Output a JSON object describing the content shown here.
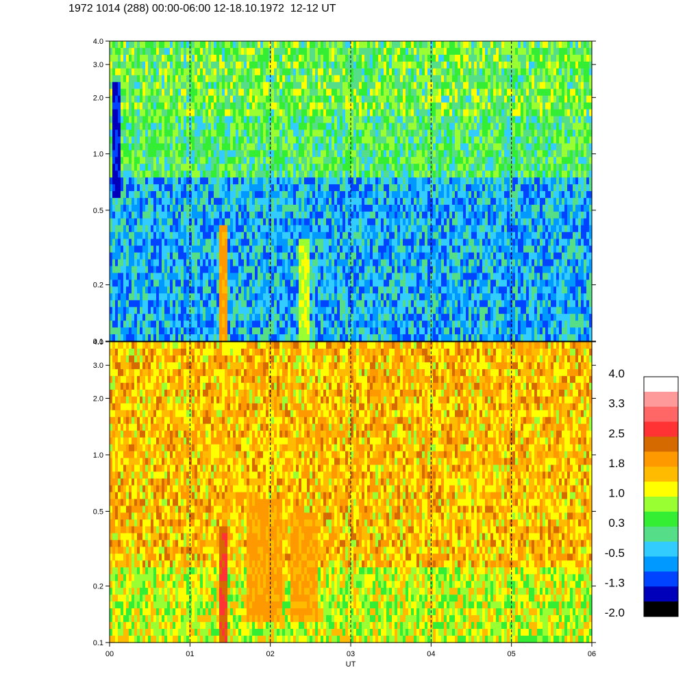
{
  "title": "1972 1014 (288) 00:00-06:00 12-18.10.1972  12-12 UT",
  "chart_data": {
    "type": "heatmap",
    "xlabel": "UT",
    "x_ticks": [
      "00",
      "01",
      "02",
      "03",
      "04",
      "05",
      "06"
    ],
    "xlim": [
      0,
      6
    ],
    "panels": [
      {
        "id": "upper",
        "ylim": [
          0.1,
          4.0
        ],
        "yscale": "log",
        "y_ticks": [
          "0.1",
          "0.2",
          "0.5",
          "1.0",
          "2.0",
          "3.0",
          "4.0"
        ],
        "dominant_levels": [
          -0.5,
          0.3,
          1.0
        ],
        "features": [
          {
            "x_start": 0.02,
            "x_end": 0.12,
            "y_min": 0.6,
            "y_max": 2.5,
            "level": -1.3
          },
          {
            "x_start": 1.38,
            "x_end": 1.46,
            "y_min": 0.1,
            "y_max": 0.4,
            "level": 1.8
          },
          {
            "x_start": 2.35,
            "x_end": 2.5,
            "y_min": 0.1,
            "y_max": 0.35,
            "level": 1.0
          }
        ]
      },
      {
        "id": "lower",
        "ylim": [
          0.1,
          4.0
        ],
        "yscale": "log",
        "y_ticks": [
          "0.1",
          "0.2",
          "0.5",
          "1.0",
          "2.0",
          "3.0",
          "4.0"
        ],
        "dominant_levels": [
          1.0,
          1.8
        ],
        "features": [
          {
            "x_start": 1.36,
            "x_end": 1.46,
            "y_min": 0.1,
            "y_max": 0.4,
            "level": 2.5
          },
          {
            "x_start": 1.7,
            "x_end": 2.15,
            "y_min": 0.13,
            "y_max": 0.6,
            "level": 1.8
          },
          {
            "x_start": 2.25,
            "x_end": 2.6,
            "y_min": 0.13,
            "y_max": 0.5,
            "level": 1.8
          }
        ]
      }
    ],
    "dashed_verticals": [
      1,
      2,
      3,
      4,
      5
    ],
    "colorbar": {
      "labels": [
        "4.0",
        "3.3",
        "2.5",
        "1.8",
        "1.0",
        "0.3",
        "-0.5",
        "-1.3",
        "-2.0"
      ],
      "colors": [
        "#ffffff",
        "#ff9a9a",
        "#ff6666",
        "#ff3333",
        "#d46a00",
        "#ff9900",
        "#ffbb00",
        "#ffff00",
        "#99ff33",
        "#33ee33",
        "#55dd88",
        "#33ccff",
        "#0099ff",
        "#0044ff",
        "#0000bb",
        "#000000"
      ]
    }
  }
}
